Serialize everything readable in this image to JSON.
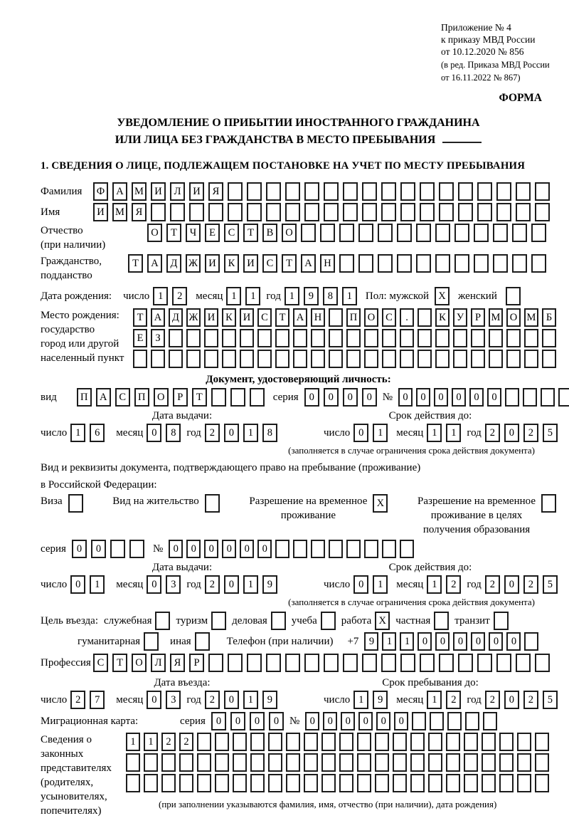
{
  "header": {
    "appendix": [
      "Приложение № 4",
      "к приказу МВД России",
      "от 10.12.2020 № 856"
    ],
    "edition": [
      "(в ред. Приказа МВД России",
      "от 16.11.2022 № 867)"
    ],
    "form_word": "ФОРМА"
  },
  "title": {
    "line1": "УВЕДОМЛЕНИЕ О ПРИБЫТИИ ИНОСТРАННОГО ГРАЖДАНИНА",
    "line2": "ИЛИ ЛИЦА БЕЗ ГРАЖДАНСТВА В МЕСТО ПРЕБЫВАНИЯ"
  },
  "section1_heading": "1. СВЕДЕНИЯ О ЛИЦЕ, ПОДЛЕЖАЩЕМ ПОСТАНОВКЕ НА УЧЕТ ПО МЕСТУ ПРЕБЫВАНИЯ",
  "words": {
    "day": "число",
    "month": "месяц",
    "year": "год",
    "series": "серия",
    "number": "№"
  },
  "fields": {
    "surname": {
      "label": "Фамилия",
      "value": "ФАМИЛИЯ",
      "count": 24
    },
    "firstname": {
      "label": "Имя",
      "value": "ИМЯ",
      "count": 24
    },
    "patronymic": {
      "label": [
        "Отчество",
        "(при наличии)"
      ],
      "value": "ОТЧЕСТВО",
      "count": 21
    },
    "citizenship": {
      "label": [
        "Гражданство,",
        "подданство"
      ],
      "value": "ТАДЖИКИСТАН",
      "count": 22
    },
    "birth": {
      "label": "Дата рождения:",
      "day": {
        "value": "12",
        "count": 2
      },
      "month": {
        "value": "11",
        "count": 2
      },
      "year": {
        "value": "1981",
        "count": 4
      },
      "sex_label": "Пол: мужской",
      "male": {
        "value": "X",
        "count": 1
      },
      "female_label": "женский",
      "female": {
        "value": "",
        "count": 1
      }
    },
    "birthplace": {
      "label": [
        "Место рождения:",
        "государство",
        "город или другой",
        "населенный пункт"
      ],
      "row1": {
        "value": "ТАДЖИКИСТАН ПОС. КУРМОМБ",
        "count": 24
      },
      "row2": {
        "value": "ЕЗ",
        "count": 24
      },
      "row3": {
        "value": "",
        "count": 24
      }
    },
    "id_doc": {
      "heading": "Документ, удостоверяющий личность:",
      "type_label": "вид",
      "type": {
        "value": "ПАСПОРТ",
        "count": 10
      },
      "series": {
        "value": "0000",
        "count": 4
      },
      "number": {
        "value": "000000",
        "count": 11
      },
      "issue_label": "Дата выдачи:",
      "expiry_label": "Срок действия до:",
      "issue_day": {
        "value": "16",
        "count": 2
      },
      "issue_month": {
        "value": "08",
        "count": 2
      },
      "issue_year": {
        "value": "2018",
        "count": 4
      },
      "expiry_day": {
        "value": "01",
        "count": 2
      },
      "expiry_month": {
        "value": "11",
        "count": 2
      },
      "expiry_year": {
        "value": "2025",
        "count": 4
      },
      "note": "(заполняется в случае ограничения срока действия документа)"
    },
    "residence": {
      "intro1": "Вид и реквизиты документа, подтверждающего право на пребывание (проживание)",
      "intro2": "в Российской Федерации:",
      "visa_label": "Виза",
      "visa": {
        "value": "",
        "count": 1
      },
      "permit_label": "Вид на жительство",
      "permit": {
        "value": "",
        "count": 1
      },
      "rvp_label": [
        "Разрешение на временное",
        "проживание"
      ],
      "rvp": {
        "value": "X",
        "count": 1
      },
      "rvpo_label": [
        "Разрешение на временное",
        "проживание в целях",
        "получения образования"
      ],
      "rvpo": {
        "value": "",
        "count": 1
      },
      "series": {
        "value": "00",
        "count": 4
      },
      "number": {
        "value": "000000",
        "count": 14
      },
      "issue_label": "Дата выдачи:",
      "expiry_label": "Срок действия до:",
      "issue_day": {
        "value": "01",
        "count": 2
      },
      "issue_month": {
        "value": "03",
        "count": 2
      },
      "issue_year": {
        "value": "2019",
        "count": 4
      },
      "expiry_day": {
        "value": "01",
        "count": 2
      },
      "expiry_month": {
        "value": "12",
        "count": 2
      },
      "expiry_year": {
        "value": "2025",
        "count": 4
      },
      "note": "(заполняется в случае ограничения срока действия документа)"
    },
    "purpose": {
      "prefix": "Цель въезда:",
      "options": [
        {
          "label": "служебная",
          "box": {
            "value": "",
            "count": 1
          }
        },
        {
          "label": "туризм",
          "box": {
            "value": "",
            "count": 1
          }
        },
        {
          "label": "деловая",
          "box": {
            "value": "",
            "count": 1
          }
        },
        {
          "label": "учеба",
          "box": {
            "value": "",
            "count": 1
          }
        },
        {
          "label": "работа",
          "box": {
            "value": "X",
            "count": 1
          }
        },
        {
          "label": "частная",
          "box": {
            "value": "",
            "count": 1
          }
        },
        {
          "label": "транзит",
          "box": {
            "value": "",
            "count": 1
          }
        },
        {
          "label": "гуманитарная",
          "box": {
            "value": "",
            "count": 1
          }
        },
        {
          "label": "иная",
          "box": {
            "value": "",
            "count": 1
          }
        }
      ],
      "phone_label": "Телефон (при наличии)",
      "phone_prefix": "+7",
      "phone": {
        "value": "911000000",
        "count": 10
      }
    },
    "profession": {
      "label": "Профессия",
      "value": "СТОЛЯР",
      "count": 24
    },
    "entry": {
      "entry_label": "Дата въезда:",
      "stay_label": "Срок пребывания до:",
      "entry_day": {
        "value": "27",
        "count": 2
      },
      "entry_month": {
        "value": "03",
        "count": 2
      },
      "entry_year": {
        "value": "2019",
        "count": 4
      },
      "stay_day": {
        "value": "19",
        "count": 2
      },
      "stay_month": {
        "value": "12",
        "count": 2
      },
      "stay_year": {
        "value": "2025",
        "count": 4
      }
    },
    "migcard": {
      "label": "Миграционная карта:",
      "series": {
        "value": "0000",
        "count": 4
      },
      "number": {
        "value": "000000",
        "count": 11
      }
    },
    "guardians": {
      "label": [
        "Сведения о",
        "законных",
        "представителях",
        "(родителях,",
        "усыновителях,",
        "попечителях)"
      ],
      "row1": {
        "value": "1122",
        "count": 24
      },
      "row2": {
        "value": "",
        "count": 24
      },
      "row3": {
        "value": "",
        "count": 24
      },
      "note": "(при заполнении указываются фамилия, имя, отчество (при наличии), дата рождения)"
    }
  }
}
